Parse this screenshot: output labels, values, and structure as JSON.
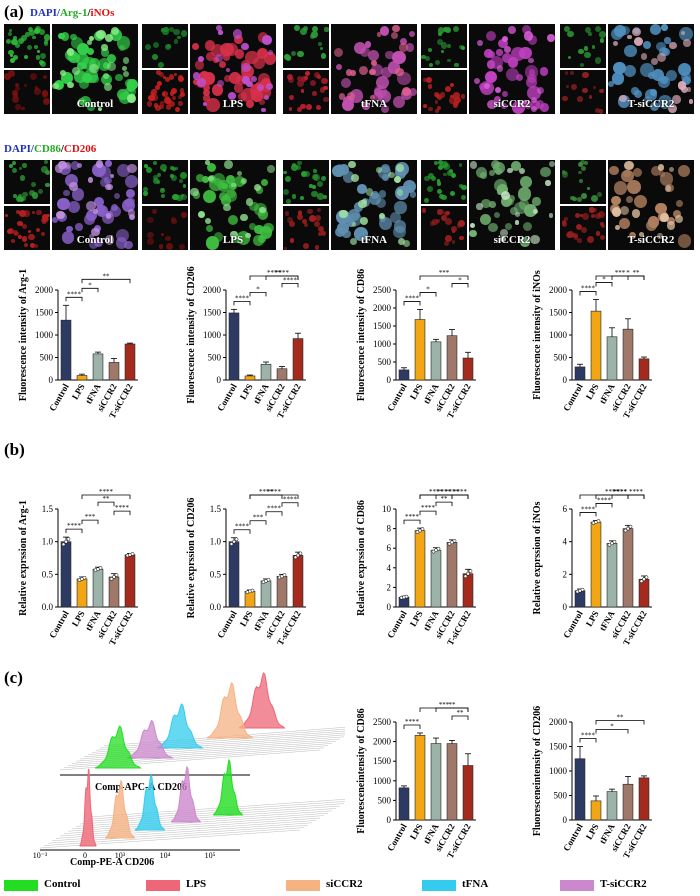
{
  "panel_a": {
    "label": "(a)",
    "row1_title": {
      "c1": "DAPI/",
      "c2": "Arg-1",
      "c3": "/",
      "c4": "iNOs"
    },
    "row2_title": {
      "c1": "DAPI/",
      "c2": "CD86",
      "c3": "/",
      "c4": "CD206"
    },
    "groups": [
      "Control",
      "LPS",
      "tFNA",
      "siCCR2",
      "T-siCCR2"
    ]
  },
  "panel_b": {
    "label": "(b)"
  },
  "panel_c": {
    "label": "(c)",
    "flow_top_axis": "Comp-APC-A  CD206",
    "flow_bottom_axis": "Comp-PE-A  CD206",
    "flow_ticks": [
      "10⁻³",
      "0",
      "10³",
      "10⁴",
      "10⁵"
    ]
  },
  "legend": [
    {
      "label": "Control",
      "color": "#22dd22"
    },
    {
      "label": "LPS",
      "color": "#ee6677"
    },
    {
      "label": "siCCR2",
      "color": "#f5b283"
    },
    {
      "label": "tFNA",
      "color": "#33ccee"
    },
    {
      "label": "T-siCCR2",
      "color": "#cc88cc"
    }
  ],
  "colors": {
    "Control": "#2d3a64",
    "LPS": "#f2a614",
    "tFNA": "#9cb3aa",
    "siCCR2": "#a0786a",
    "T-siCCR2": "#a52a1e"
  },
  "chart_data": [
    {
      "type": "bar",
      "id": "a1",
      "ylabel": "Fluorescence intensity of Arg-1",
      "categories": [
        "Control",
        "LPS",
        "tFNA",
        "siCCR2",
        "T-siCCR2"
      ],
      "values": [
        1330,
        100,
        580,
        390,
        800
      ],
      "errors": [
        330,
        30,
        40,
        90,
        20
      ],
      "ylim": [
        0,
        2000
      ],
      "yticks": [
        "0",
        "500",
        "1000",
        "1500",
        "2000"
      ],
      "tickvals": [
        0,
        500,
        1000,
        1500,
        2000
      ],
      "color_by": "a",
      "sig": [
        {
          "a": 0,
          "b": 1,
          "text": "****"
        },
        {
          "a": 1,
          "b": 2,
          "text": "*"
        },
        {
          "a": 1,
          "b": 4,
          "text": "**"
        }
      ]
    },
    {
      "type": "bar",
      "id": "a2",
      "ylabel": "Fluorescence intensity of CD206",
      "categories": [
        "Control",
        "LPS",
        "tFNA",
        "siCCR2",
        "T-siCCR2"
      ],
      "values": [
        1490,
        90,
        350,
        250,
        920
      ],
      "errors": [
        80,
        20,
        50,
        50,
        120
      ],
      "ylim": [
        0,
        2000
      ],
      "yticks": [
        "0",
        "500",
        "1000",
        "1500",
        "2000"
      ],
      "tickvals": [
        0,
        500,
        1000,
        1500,
        2000
      ],
      "color_by": "a",
      "sig": [
        {
          "a": 0,
          "b": 1,
          "text": "****"
        },
        {
          "a": 1,
          "b": 2,
          "text": "*"
        },
        {
          "a": 3,
          "b": 4,
          "text": "****"
        },
        {
          "a": 2,
          "b": 4,
          "text": "****"
        },
        {
          "a": 1,
          "b": 4,
          "text": "****"
        }
      ]
    },
    {
      "type": "bar",
      "id": "a3",
      "ylabel": "Fluorescence intensity of CD86",
      "categories": [
        "Control",
        "LPS",
        "tFNA",
        "siCCR2",
        "T-siCCR2"
      ],
      "values": [
        280,
        1680,
        1060,
        1230,
        610
      ],
      "errors": [
        60,
        280,
        70,
        170,
        160
      ],
      "ylim": [
        0,
        2500
      ],
      "yticks": [
        "0",
        "500",
        "1000",
        "1500",
        "2000",
        "2500"
      ],
      "tickvals": [
        0,
        500,
        1000,
        1500,
        2000,
        2500
      ],
      "color_by": "b",
      "sig": [
        {
          "a": 0,
          "b": 1,
          "text": "****"
        },
        {
          "a": 1,
          "b": 2,
          "text": "*"
        },
        {
          "a": 3,
          "b": 4,
          "text": "*"
        },
        {
          "a": 1,
          "b": 4,
          "text": "***"
        }
      ]
    },
    {
      "type": "bar",
      "id": "a4",
      "ylabel": "Fluorescence intensity of iNOs",
      "categories": [
        "Control",
        "LPS",
        "tFNA",
        "siCCR2",
        "T-siCCR2"
      ],
      "values": [
        290,
        1530,
        960,
        1130,
        470
      ],
      "errors": [
        60,
        260,
        200,
        230,
        40
      ],
      "ylim": [
        0,
        2000
      ],
      "yticks": [
        "0",
        "500",
        "1000",
        "1500",
        "2000"
      ],
      "tickvals": [
        0,
        500,
        1000,
        1500,
        2000
      ],
      "color_by": "b",
      "sig": [
        {
          "a": 0,
          "b": 1,
          "text": "****"
        },
        {
          "a": 1,
          "b": 2,
          "text": "*"
        },
        {
          "a": 3,
          "b": 4,
          "text": "**"
        },
        {
          "a": 2,
          "b": 4,
          "text": "*"
        },
        {
          "a": 1,
          "b": 4,
          "text": "***"
        }
      ]
    },
    {
      "type": "bar",
      "id": "b1",
      "ylabel": "Relative exprssion of Arg-1",
      "categories": [
        "Control",
        "LPS",
        "tFNA",
        "siCCR2",
        "T-siCCR2"
      ],
      "values": [
        1.0,
        0.43,
        0.58,
        0.46,
        0.8
      ],
      "errors": [
        0.07,
        0.03,
        0.03,
        0.05,
        0.02
      ],
      "ylim": [
        0,
        1.5
      ],
      "yticks": [
        "0.0",
        "0.5",
        "1.0",
        "1.5"
      ],
      "tickvals": [
        0,
        0.5,
        1.0,
        1.5
      ],
      "color_by": "b",
      "dots": true,
      "sig": [
        {
          "a": 0,
          "b": 1,
          "text": "****"
        },
        {
          "a": 1,
          "b": 2,
          "text": "***"
        },
        {
          "a": 3,
          "b": 4,
          "text": "****"
        },
        {
          "a": 2,
          "b": 3,
          "text": "**"
        },
        {
          "a": 1,
          "b": 4,
          "text": "****"
        }
      ]
    },
    {
      "type": "bar",
      "id": "b2",
      "ylabel": "Relative exprssion of CD206",
      "categories": [
        "Control",
        "LPS",
        "tFNA",
        "siCCR2",
        "T-siCCR2"
      ],
      "values": [
        1.0,
        0.24,
        0.4,
        0.47,
        0.79
      ],
      "errors": [
        0.06,
        0.02,
        0.03,
        0.03,
        0.05
      ],
      "ylim": [
        0,
        1.5
      ],
      "yticks": [
        "0.0",
        "0.5",
        "1.0",
        "1.5"
      ],
      "tickvals": [
        0,
        0.5,
        1.0,
        1.5
      ],
      "color_by": "b",
      "dots": true,
      "sig": [
        {
          "a": 0,
          "b": 1,
          "text": "****"
        },
        {
          "a": 1,
          "b": 2,
          "text": "***"
        },
        {
          "a": 2,
          "b": 3,
          "text": "****"
        },
        {
          "a": 3,
          "b": 4,
          "text": "****"
        },
        {
          "a": 1,
          "b": 3,
          "text": "****"
        },
        {
          "a": 1,
          "b": 4,
          "text": "****"
        }
      ]
    },
    {
      "type": "bar",
      "id": "b3",
      "ylabel": "Relative exprssion of CD86",
      "categories": [
        "Control",
        "LPS",
        "tFNA",
        "siCCR2",
        "T-siCCR2"
      ],
      "values": [
        1.0,
        7.8,
        5.8,
        6.6,
        3.4
      ],
      "errors": [
        0.1,
        0.25,
        0.25,
        0.25,
        0.45
      ],
      "ylim": [
        0,
        10
      ],
      "yticks": [
        "0",
        "2",
        "4",
        "6",
        "8",
        "10"
      ],
      "tickvals": [
        0,
        2,
        4,
        6,
        8,
        10
      ],
      "color_by": "b",
      "dots": true,
      "sig": [
        {
          "a": 0,
          "b": 1,
          "text": "****"
        },
        {
          "a": 1,
          "b": 2,
          "text": "****"
        },
        {
          "a": 2,
          "b": 3,
          "text": "**"
        },
        {
          "a": 3,
          "b": 4,
          "text": "****"
        },
        {
          "a": 1,
          "b": 3,
          "text": "****"
        },
        {
          "a": 2,
          "b": 4,
          "text": "****"
        },
        {
          "a": 1,
          "b": 4,
          "text": "****"
        }
      ]
    },
    {
      "type": "bar",
      "id": "b4",
      "ylabel": "Relative exprssion of iNOs",
      "categories": [
        "Control",
        "LPS",
        "tFNA",
        "siCCR2",
        "T-siCCR2"
      ],
      "values": [
        1.0,
        5.2,
        3.9,
        4.8,
        1.7
      ],
      "errors": [
        0.1,
        0.1,
        0.15,
        0.2,
        0.2
      ],
      "ylim": [
        0,
        6
      ],
      "yticks": [
        "0",
        "2",
        "4",
        "6"
      ],
      "tickvals": [
        0,
        2,
        4,
        6
      ],
      "color_by": "b",
      "dots": true,
      "sig": [
        {
          "a": 0,
          "b": 1,
          "text": "****"
        },
        {
          "a": 1,
          "b": 2,
          "text": "****"
        },
        {
          "a": 2,
          "b": 3,
          "text": "****"
        },
        {
          "a": 3,
          "b": 4,
          "text": "****"
        },
        {
          "a": 1,
          "b": 4,
          "text": "****"
        },
        {
          "a": 0,
          "b": 4,
          "text": "****"
        }
      ]
    },
    {
      "type": "bar",
      "id": "c1",
      "ylabel": "Fluoresceneintensity of CD86",
      "categories": [
        "Control",
        "LPS",
        "tFNA",
        "siCCR2",
        "T-siCCR2"
      ],
      "values": [
        820,
        2160,
        1950,
        1950,
        1390
      ],
      "errors": [
        50,
        60,
        140,
        80,
        300
      ],
      "ylim": [
        0,
        2500
      ],
      "yticks": [
        "0",
        "500",
        "1000",
        "1500",
        "2000",
        "2500"
      ],
      "tickvals": [
        0,
        500,
        1000,
        1500,
        2000,
        2500
      ],
      "color_by": "b",
      "sig": [
        {
          "a": 0,
          "b": 1,
          "text": "****"
        },
        {
          "a": 3,
          "b": 4,
          "text": "**"
        },
        {
          "a": 2,
          "b": 4,
          "text": "**"
        },
        {
          "a": 1,
          "b": 4,
          "text": "***"
        }
      ]
    },
    {
      "type": "bar",
      "id": "c2",
      "ylabel": "Fluoresceneintensity of CD206",
      "categories": [
        "Control",
        "LPS",
        "tFNA",
        "siCCR2",
        "T-siCCR2"
      ],
      "values": [
        1250,
        390,
        580,
        730,
        860
      ],
      "errors": [
        250,
        100,
        50,
        160,
        40
      ],
      "ylim": [
        0,
        2000
      ],
      "yticks": [
        "0",
        "500",
        "1000",
        "1500",
        "2000"
      ],
      "tickvals": [
        0,
        500,
        1000,
        1500,
        2000
      ],
      "color_by": "b",
      "sig": [
        {
          "a": 0,
          "b": 1,
          "text": "****"
        },
        {
          "a": 1,
          "b": 3,
          "text": "*"
        },
        {
          "a": 1,
          "b": 4,
          "text": "**"
        }
      ]
    }
  ]
}
